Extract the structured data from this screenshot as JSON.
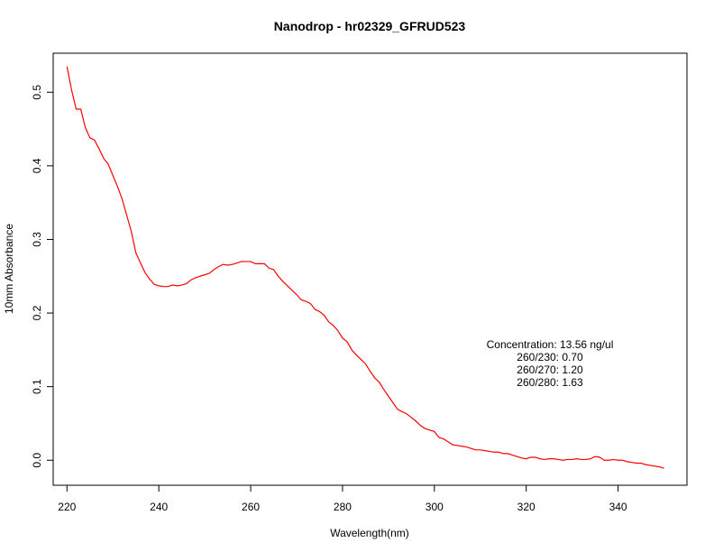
{
  "chart_data": {
    "type": "line",
    "title": "Nanodrop - hr02329_GFRUD523",
    "xlabel": "Wavelength(nm)",
    "ylabel": "10mm Absorbance",
    "xlim": [
      217,
      355
    ],
    "ylim": [
      -0.034,
      0.553
    ],
    "x_ticks": [
      220,
      240,
      260,
      280,
      300,
      320,
      340
    ],
    "y_ticks": [
      0.0,
      0.1,
      0.2,
      0.3,
      0.4,
      0.5
    ],
    "x_tick_labels": [
      "220",
      "240",
      "260",
      "280",
      "300",
      "320",
      "340"
    ],
    "y_tick_labels": [
      "0.0",
      "0.1",
      "0.2",
      "0.3",
      "0.4",
      "0.5"
    ],
    "grid": false,
    "series": [
      {
        "color": "#ff0000",
        "x": [
          220,
          221,
          222,
          223,
          224,
          225,
          226,
          227,
          228,
          229,
          230,
          231,
          232,
          233,
          234,
          235,
          236,
          237,
          238,
          239,
          240,
          241,
          242,
          243,
          244,
          245,
          246,
          247,
          248,
          249,
          250,
          251,
          252,
          253,
          254,
          255,
          256,
          257,
          258,
          259,
          260,
          261,
          262,
          263,
          264,
          265,
          266,
          267,
          268,
          269,
          270,
          271,
          272,
          273,
          274,
          275,
          276,
          277,
          278,
          279,
          280,
          281,
          282,
          283,
          284,
          285,
          286,
          287,
          288,
          289,
          290,
          291,
          292,
          293,
          294,
          295,
          296,
          297,
          298,
          299,
          300,
          301,
          302,
          303,
          304,
          305,
          306,
          307,
          308,
          309,
          310,
          311,
          312,
          313,
          314,
          315,
          316,
          317,
          318,
          319,
          320,
          321,
          322,
          323,
          324,
          325,
          326,
          327,
          328,
          329,
          330,
          331,
          332,
          333,
          334,
          335,
          336,
          337,
          338,
          339,
          340,
          341,
          342,
          343,
          344,
          345,
          346,
          347,
          348,
          349,
          350
        ],
        "y": [
          0.535,
          0.503,
          0.477,
          0.477,
          0.452,
          0.438,
          0.435,
          0.423,
          0.41,
          0.402,
          0.387,
          0.372,
          0.355,
          0.333,
          0.311,
          0.282,
          0.268,
          0.255,
          0.246,
          0.239,
          0.237,
          0.236,
          0.236,
          0.238,
          0.237,
          0.238,
          0.24,
          0.245,
          0.248,
          0.25,
          0.252,
          0.254,
          0.259,
          0.263,
          0.266,
          0.265,
          0.266,
          0.268,
          0.27,
          0.27,
          0.27,
          0.267,
          0.267,
          0.267,
          0.261,
          0.259,
          0.25,
          0.243,
          0.237,
          0.231,
          0.225,
          0.218,
          0.216,
          0.213,
          0.205,
          0.202,
          0.197,
          0.188,
          0.183,
          0.176,
          0.166,
          0.161,
          0.15,
          0.143,
          0.137,
          0.131,
          0.121,
          0.112,
          0.106,
          0.096,
          0.087,
          0.078,
          0.069,
          0.066,
          0.063,
          0.058,
          0.053,
          0.047,
          0.043,
          0.041,
          0.039,
          0.031,
          0.029,
          0.025,
          0.021,
          0.02,
          0.019,
          0.018,
          0.016,
          0.014,
          0.014,
          0.013,
          0.012,
          0.011,
          0.011,
          0.009,
          0.009,
          0.007,
          0.005,
          0.003,
          0.002,
          0.004,
          0.004,
          0.002,
          0.001,
          0.002,
          0.002,
          0.001,
          0.0,
          0.001,
          0.001,
          0.002,
          0.001,
          0.001,
          0.002,
          0.005,
          0.004,
          0.0,
          0.0,
          0.001,
          0.0,
          0.0,
          -0.002,
          -0.003,
          -0.004,
          -0.004,
          -0.006,
          -0.007,
          -0.008,
          -0.009,
          -0.011
        ]
      }
    ],
    "annotations": [
      "Concentration: 13.56 ng/ul",
      "260/230: 0.70",
      "260/270: 1.20",
      "260/280: 1.63"
    ]
  }
}
